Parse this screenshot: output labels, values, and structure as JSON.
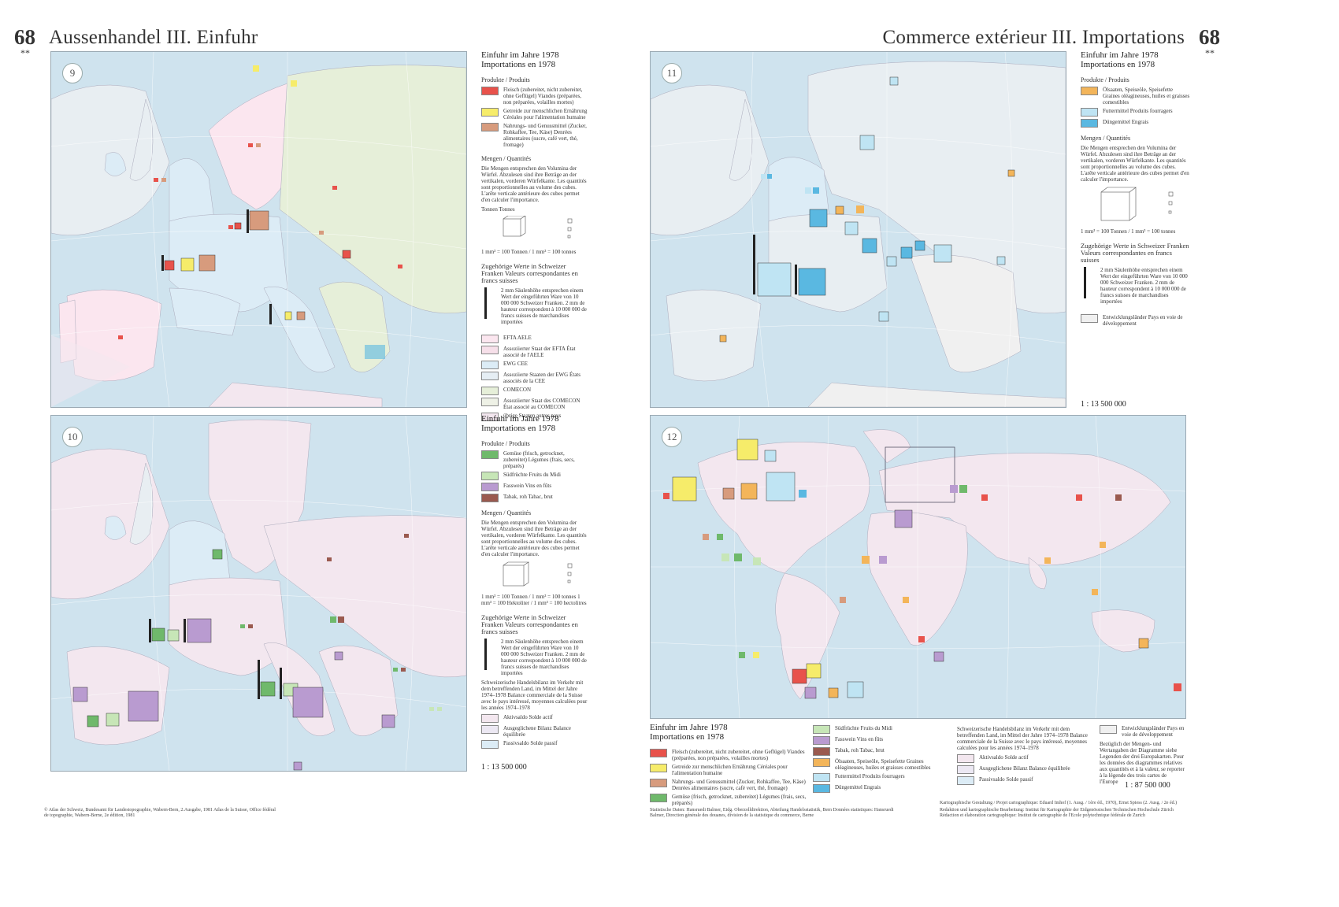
{
  "page": {
    "number": "68",
    "stars": "**",
    "title_de": "Aussenhandel III. Einfuhr",
    "title_fr": "Commerce extérieur III. Importations"
  },
  "colors": {
    "sea": "#cfe3ee",
    "efta": "#fbe6ef",
    "ewg": "#dcecf6",
    "comecon": "#e6efd9",
    "other": "#f3e7ef",
    "meat": "#e8524b",
    "cereal": "#f6ec6a",
    "food": "#d79b7d",
    "veg": "#6fb96b",
    "fruit": "#c7e6b7",
    "wine": "#b99bd0",
    "tobacco": "#9a5a4f",
    "oilseed": "#f3b55a",
    "fodder": "#bfe4f3",
    "fertilizer": "#5ab8e1"
  },
  "maps": [
    {
      "number": "9"
    },
    {
      "number": "10"
    },
    {
      "number": "11"
    },
    {
      "number": "12"
    }
  ],
  "legend9": {
    "title1": "Einfuhr im Jahre 1978",
    "title2": "Importations en 1978",
    "products_head": "Produkte / Produits",
    "products": [
      {
        "label": "Fleisch (zubereitet, nicht zubereitet, ohne Geflügel) Viandes (préparées, non préparées, volailles mortes)",
        "color": "#e8524b"
      },
      {
        "label": "Getreide zur menschlichen Ernährung Céréales pour l'alimentation humaine",
        "color": "#f6ec6a"
      },
      {
        "label": "Nahrungs- und Genussmittel (Zucker, Rohkaffee, Tee, Käse) Denrées alimentaires (sucre, café vert, thé, fromage)",
        "color": "#d79b7d"
      }
    ],
    "qty_head": "Mengen / Quantités",
    "qty_text": "Die Mengen entsprechen den Volumina der Würfel. Abzulesen sind ihre Beträge an der vertikalen, vorderen Würfelkante. Les quantités sont proportionnelles au volume des cubes. L'arête verticale antérieure des cubes permet d'en calculer l'importance.",
    "tonnes": "Tonnen Tonnes",
    "units": "1 mm³ = 100 Tonnen / 1 mm³ = 100 tonnes",
    "values_head": "Zugehörige Werte in Schweizer Franken Valeurs correspondantes en francs suisses",
    "values_text": "2 mm Säulenhöhe entsprechen einem Wert der eingeführten Ware von 10 000 000 Schweizer Franken. 2 mm de hauteur correspondent à 10 000 000 de francs suisses de marchandises importées",
    "groups": [
      {
        "label": "EFTA AELE",
        "color": "#fbe6ef"
      },
      {
        "label": "Assoziierter Staat der EFTA État associé de l'AELE",
        "color": "#f6dfe9"
      },
      {
        "label": "EWG CEE",
        "color": "#dcecf6"
      },
      {
        "label": "Assoziierte Staaten der EWG États associés de la CEE",
        "color": "#e6eef4"
      },
      {
        "label": "COMECON",
        "color": "#e6efd9"
      },
      {
        "label": "Assoziierter Staat des COMECON État associé au COMECON",
        "color": "#eef1e6"
      },
      {
        "label": "übrige Staaten autres pays",
        "color": "#f3e7ef"
      }
    ]
  },
  "legend10": {
    "title1": "Einfuhr im Jahre 1978",
    "title2": "Importations en 1978",
    "products_head": "Produkte / Produits",
    "products": [
      {
        "label": "Gemüse (frisch, getrocknet, zubereitet) Légumes (frais, secs, préparés)",
        "color": "#6fb96b"
      },
      {
        "label": "Südfrüchte Fruits du Midi",
        "color": "#c7e6b7"
      },
      {
        "label": "Fasswein Vins en fûts",
        "color": "#b99bd0"
      },
      {
        "label": "Tabak, roh Tabac, brut",
        "color": "#9a5a4f"
      }
    ],
    "qty_head": "Mengen / Quantités",
    "qty_text": "Die Mengen entsprechen den Volumina der Würfel. Abzulesen sind ihre Beträge an der vertikalen, vorderen Würfelkante. Les quantités sont proportionnelles au volume des cubes. L'arête verticale antérieure des cubes permet d'en calculer l'importance.",
    "units": "1 mm³ = 100 Tonnen / 1 mm³ = 100 tonnes 1 mm³ = 100 Hektoliter / 1 mm³ = 100 hectolitres",
    "values_head": "Zugehörige Werte in Schweizer Franken Valeurs correspondantes en francs suisses",
    "values_text": "2 mm Säulenhöhe entsprechen einem Wert der eingeführten Ware von 10 000 000 Schweizer Franken. 2 mm de hauteur correspondent à 10 000 000 de francs suisses de marchandises importées",
    "balance_text": "Schweizerische Handelsbilanz im Verkehr mit dem betreffenden Land, im Mittel der Jahre 1974–1978 Balance commerciale de la Suisse avec le pays intéressé, moyennes calculées pour les années 1974–1978",
    "balance": [
      {
        "label": "Aktivsaldo Solde actif",
        "color": "#f3e7ef"
      },
      {
        "label": "Ausgeglichene Bilanz Balance équilibrée",
        "color": "#ece8f3"
      },
      {
        "label": "Passivsaldo Solde passif",
        "color": "#dcecf6"
      }
    ],
    "scale": "1 : 13 500 000"
  },
  "legend11": {
    "title1": "Einfuhr im Jahre 1978",
    "title2": "Importations en 1978",
    "products_head": "Produkte / Produits",
    "products": [
      {
        "label": "Ölsaaten, Speiseöle, Speisefette Graines oléagineuses, huiles et graisses comestibles",
        "color": "#f3b55a"
      },
      {
        "label": "Futtermittel Produits fourragers",
        "color": "#bfe4f3"
      },
      {
        "label": "Düngemittel Engrais",
        "color": "#5ab8e1"
      }
    ],
    "qty_head": "Mengen / Quantités",
    "qty_text": "Die Mengen entsprechen den Volumina der Würfel. Abzulesen sind ihre Beträge an der vertikalen, vorderen Würfelkante. Les quantités sont proportionnelles au volume des cubes. L'arête verticale antérieure des cubes permet d'en calculer l'importance.",
    "units": "1 mm³ = 100 Tonnen / 1 mm³ = 100 tonnes",
    "values_head": "Zugehörige Werte in Schweizer Franken Valeurs correspondantes en francs suisses",
    "values_text": "2 mm Säulenhöhe entsprechen einem Wert der eingeführten Ware von 10 000 000 Schweizer Franken. 2 mm de hauteur correspondent à 10 000 000 de francs suisses de marchandises importées",
    "dev": "Entwicklungsländer Pays en voie de développement",
    "scale": "1 : 13 500 000"
  },
  "legend12": {
    "title1": "Einfuhr im Jahre 1978",
    "title2": "Importations en 1978",
    "col1": [
      {
        "label": "Fleisch (zubereitet, nicht zubereitet, ohne Geflügel) Viandes (préparées, non préparées, volailles mortes)",
        "color": "#e8524b"
      },
      {
        "label": "Getreide zur menschlichen Ernährung Céréales pour l'alimentation humaine",
        "color": "#f6ec6a"
      },
      {
        "label": "Nahrungs- und Genussmittel (Zucker, Rohkaffee, Tee, Käse) Denrées alimentaires (sucre, café vert, thé, fromage)",
        "color": "#d79b7d"
      },
      {
        "label": "Gemüse (frisch, getrocknet, zubereitet) Légumes (frais, secs, préparés)",
        "color": "#6fb96b"
      }
    ],
    "col2": [
      {
        "label": "Südfrüchte Fruits du Midi",
        "color": "#c7e6b7"
      },
      {
        "label": "Fasswein Vins en fûts",
        "color": "#b99bd0"
      },
      {
        "label": "Tabak, roh Tabac, brut",
        "color": "#9a5a4f"
      },
      {
        "label": "Ölsaaten, Speiseöle, Speisefette Graines oléagineuses, huiles et graisses comestibles",
        "color": "#f3b55a"
      },
      {
        "label": "Futtermittel Produits fourragers",
        "color": "#bfe4f3"
      },
      {
        "label": "Düngemittel Engrais",
        "color": "#5ab8e1"
      }
    ],
    "balance_text": "Schweizerische Handelsbilanz im Verkehr mit dem betreffenden Land, im Mittel der Jahre 1974–1978 Balance commerciale de la Suisse avec le pays intéressé, moyennes calculées pour les années 1974–1978",
    "balance": [
      {
        "label": "Aktivsaldo Solde actif",
        "color": "#f3e7ef"
      },
      {
        "label": "Ausgeglichene Bilanz Balance équilibrée",
        "color": "#ece8f3"
      },
      {
        "label": "Passivsaldo Solde passif",
        "color": "#dcecf6"
      }
    ],
    "dev": "Entwicklungsländer Pays en voie de développement",
    "note": "Bezüglich der Mengen- und Wertangaben der Diagramme siehe Legenden der drei Europakarten. Pour les données des diagrammes relatives aux quantités et à la valeur, se reporter à la légende des trois cartes de l'Europe",
    "scale": "1 : 87 500 000"
  },
  "footer": {
    "left": "© Atlas der Schweiz, Bundesamt für Landestopographie, Wabern-Bern, 2.Ausgabe, 1981 Atlas de la Suisse, Office fédéral de topographie, Wabern-Berne, 2e édition, 1981",
    "mid": "Statistische Daten: Hansruedi Balmer, Eidg. Oberzolldirektion, Abteilung Handelsstatistik, Bern Données statistiques: Hansruedi Balmer, Direction générale des douanes, division de la statistique du commerce, Berne",
    "right1": "Kartographische Gestaltung / Projet cartographique: Eduard Imhof (1. Ausg. / 1ère éd., 1970), Ernst Spiess (2. Ausg. / 2e éd.)",
    "right2": "Redaktion und kartographische Bearbeitung: Institut für Kartographie der Eidgenössischen Technischen Hochschule Zürich Rédaction et élaboration cartographique: Institut de cartographie de l'Ecole polytechnique fédérale de Zurich"
  }
}
